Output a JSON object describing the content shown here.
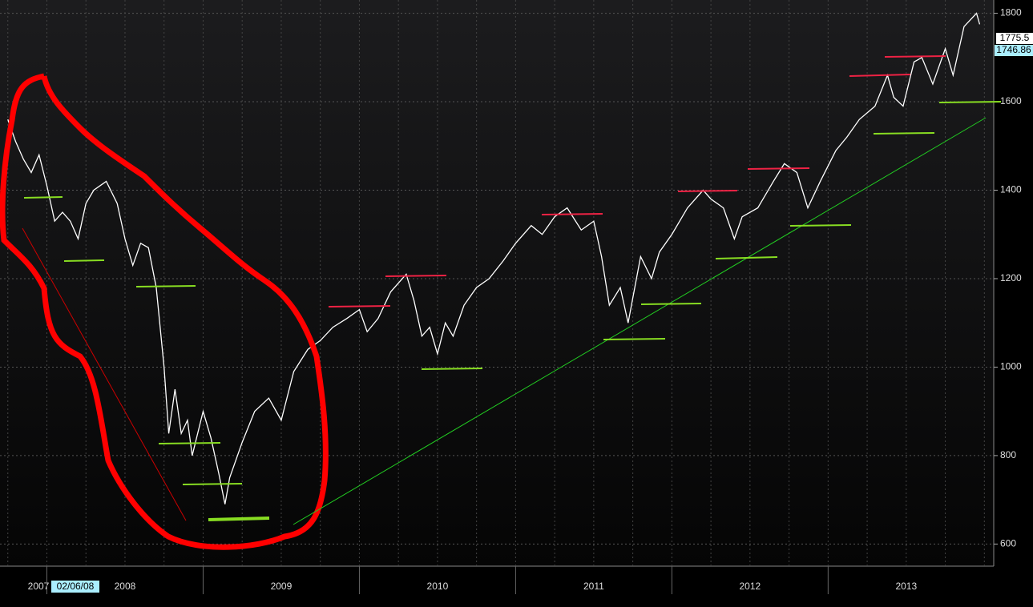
{
  "chart_data": {
    "type": "line",
    "x": [
      2007.75,
      2007.8,
      2007.85,
      2007.9,
      2007.95,
      2008.0,
      2008.05,
      2008.1,
      2008.15,
      2008.2,
      2008.25,
      2008.3,
      2008.38,
      2008.45,
      2008.5,
      2008.55,
      2008.6,
      2008.65,
      2008.7,
      2008.75,
      2008.78,
      2008.82,
      2008.86,
      2008.9,
      2008.93,
      2009.0,
      2009.05,
      2009.1,
      2009.14,
      2009.17,
      2009.25,
      2009.33,
      2009.42,
      2009.5,
      2009.58,
      2009.67,
      2009.75,
      2009.83,
      2009.92,
      2010.0,
      2010.05,
      2010.12,
      2010.2,
      2010.3,
      2010.35,
      2010.4,
      2010.45,
      2010.5,
      2010.55,
      2010.6,
      2010.67,
      2010.75,
      2010.83,
      2010.92,
      2011.0,
      2011.1,
      2011.17,
      2011.25,
      2011.33,
      2011.42,
      2011.5,
      2011.55,
      2011.6,
      2011.67,
      2011.72,
      2011.8,
      2011.87,
      2011.92,
      2012.0,
      2012.1,
      2012.2,
      2012.25,
      2012.33,
      2012.4,
      2012.45,
      2012.55,
      2012.65,
      2012.72,
      2012.8,
      2012.87,
      2012.95,
      2013.05,
      2013.12,
      2013.2,
      2013.3,
      2013.38,
      2013.42,
      2013.48,
      2013.55,
      2013.6,
      2013.67,
      2013.75,
      2013.8,
      2013.87,
      2013.95,
      2013.97
    ],
    "series": [
      {
        "color": "#ffffff",
        "values": [
          1560,
          1510,
          1470,
          1440,
          1480,
          1410,
          1330,
          1350,
          1330,
          1290,
          1370,
          1400,
          1420,
          1370,
          1290,
          1230,
          1280,
          1270,
          1180,
          1000,
          850,
          950,
          850,
          880,
          800,
          900,
          840,
          760,
          690,
          750,
          830,
          900,
          930,
          880,
          990,
          1040,
          1060,
          1090,
          1110,
          1130,
          1080,
          1110,
          1170,
          1210,
          1150,
          1070,
          1090,
          1030,
          1100,
          1070,
          1140,
          1180,
          1200,
          1240,
          1280,
          1320,
          1300,
          1340,
          1360,
          1310,
          1330,
          1250,
          1140,
          1180,
          1100,
          1250,
          1200,
          1260,
          1300,
          1360,
          1400,
          1380,
          1360,
          1290,
          1340,
          1360,
          1420,
          1460,
          1440,
          1360,
          1420,
          1490,
          1520,
          1560,
          1590,
          1660,
          1610,
          1590,
          1690,
          1700,
          1640,
          1720,
          1660,
          1770,
          1800,
          1775
        ]
      }
    ],
    "xlim": [
      2007.7,
      2014.06
    ],
    "xticks": [
      2007,
      2008,
      2009,
      2010,
      2011,
      2012,
      2013
    ],
    "ylim": [
      550,
      1830
    ],
    "yticks": [
      600,
      800,
      1000,
      1200,
      1400,
      1600,
      1800
    ],
    "annotations": [
      "1775.5",
      "1746.86",
      "02/06/08"
    ],
    "grid": true
  }
}
